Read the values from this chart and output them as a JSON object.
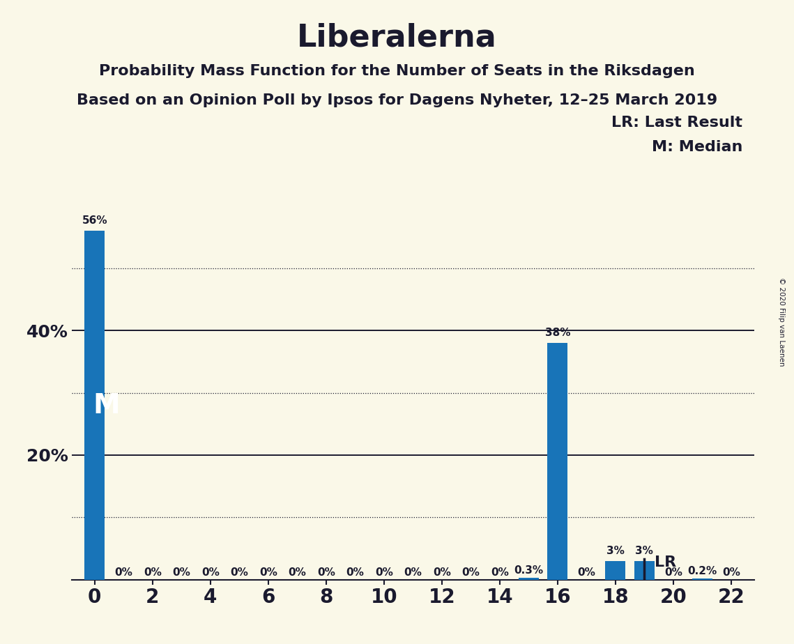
{
  "title": "Liberalerna",
  "subtitle1": "Probability Mass Function for the Number of Seats in the Riksdagen",
  "subtitle2": "Based on an Opinion Poll by Ipsos for Dagens Nyheter, 12–25 March 2019",
  "copyright": "© 2020 Filip van Laenen",
  "seats": [
    0,
    1,
    2,
    3,
    4,
    5,
    6,
    7,
    8,
    9,
    10,
    11,
    12,
    13,
    14,
    15,
    16,
    17,
    18,
    19,
    20,
    21,
    22
  ],
  "probabilities": [
    0.56,
    0.0,
    0.0,
    0.0,
    0.0,
    0.0,
    0.0,
    0.0,
    0.0,
    0.0,
    0.0,
    0.0,
    0.0,
    0.0,
    0.0,
    0.003,
    0.38,
    0.0,
    0.03,
    0.03,
    0.0,
    0.002,
    0.0
  ],
  "bar_labels": [
    "56%",
    "0%",
    "0%",
    "0%",
    "0%",
    "0%",
    "0%",
    "0%",
    "0%",
    "0%",
    "0%",
    "0%",
    "0%",
    "0%",
    "0%",
    "0.3%",
    "38%",
    "0%",
    "3%",
    "3%",
    "0%",
    "0.2%",
    "0%"
  ],
  "bar_color": "#1874b8",
  "background_color": "#faf8e8",
  "median_seat": 0,
  "last_result_seat": 19,
  "ylim": [
    0,
    0.6
  ],
  "solid_gridlines": [
    0.2,
    0.4
  ],
  "dotted_gridlines": [
    0.1,
    0.3,
    0.5
  ],
  "title_fontsize": 32,
  "subtitle_fontsize": 16,
  "legend_fontsize": 16,
  "bar_label_fontsize": 11,
  "ytick_fontsize": 18,
  "xtick_fontsize": 20,
  "bar_width": 0.7,
  "text_color": "#1a1a2e"
}
